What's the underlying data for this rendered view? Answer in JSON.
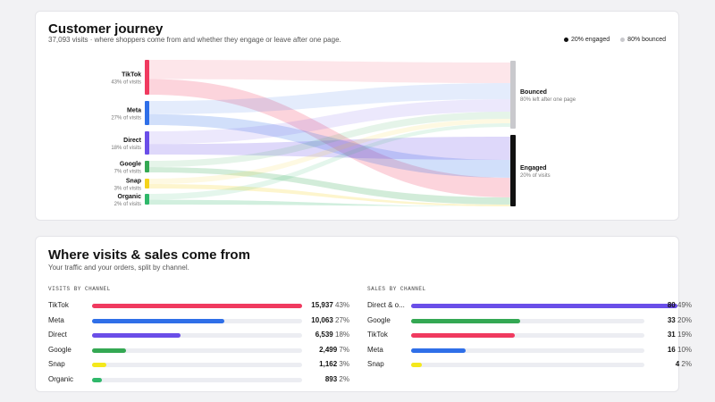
{
  "journey": {
    "title": "Customer journey",
    "subtitle": "37,093 visits · where shoppers come from and whether they engage or leave after one page.",
    "legend": [
      {
        "label": "20% engaged",
        "color": "#111111"
      },
      {
        "label": "80% bounced",
        "color": "#c9c9cd"
      }
    ],
    "sources": [
      {
        "name": "TikTok",
        "share": "43% of visits",
        "color": "#f03a5f"
      },
      {
        "name": "Meta",
        "share": "27% of visits",
        "color": "#2f6fe8"
      },
      {
        "name": "Direct",
        "share": "18% of visits",
        "color": "#6a4ee8"
      },
      {
        "name": "Google",
        "share": "7% of visits",
        "color": "#34a853"
      },
      {
        "name": "Snap",
        "share": "3% of visits",
        "color": "#f4d31c"
      },
      {
        "name": "Organic",
        "share": "2% of visits",
        "color": "#2fb86a"
      }
    ],
    "targets": [
      {
        "name": "Bounced",
        "note": "80% left after one page",
        "color": "#c9c9cd"
      },
      {
        "name": "Engaged",
        "note": "20% of visits",
        "color": "#111111"
      }
    ]
  },
  "channels": {
    "title": "Where visits & sales come from",
    "subtitle": "Your traffic and your orders, split by channel.",
    "visits_label": "VISITS BY CHANNEL",
    "sales_label": "SALES BY CHANNEL",
    "visits": [
      {
        "name": "TikTok",
        "value": "15,937",
        "pct": "43%",
        "fraction": 0.43,
        "color": "#f03a5f"
      },
      {
        "name": "Meta",
        "value": "10,063",
        "pct": "27%",
        "fraction": 0.27,
        "color": "#2f6fe8"
      },
      {
        "name": "Direct",
        "value": "6,539",
        "pct": "18%",
        "fraction": 0.18,
        "color": "#6a4ee8"
      },
      {
        "name": "Google",
        "value": "2,499",
        "pct": "7%",
        "fraction": 0.07,
        "color": "#34a853"
      },
      {
        "name": "Snap",
        "value": "1,162",
        "pct": "3%",
        "fraction": 0.03,
        "color": "#f4e81c"
      },
      {
        "name": "Organic",
        "value": "893",
        "pct": "2%",
        "fraction": 0.02,
        "color": "#2fb86a"
      }
    ],
    "sales": [
      {
        "name": "Direct & o...",
        "value": "80",
        "pct": "49%",
        "fraction": 0.49,
        "color": "#6a4ee8"
      },
      {
        "name": "Google",
        "value": "33",
        "pct": "20%",
        "fraction": 0.2,
        "color": "#34a853"
      },
      {
        "name": "TikTok",
        "value": "31",
        "pct": "19%",
        "fraction": 0.19,
        "color": "#f03a5f"
      },
      {
        "name": "Meta",
        "value": "16",
        "pct": "10%",
        "fraction": 0.1,
        "color": "#2f6fe8"
      },
      {
        "name": "Snap",
        "value": "4",
        "pct": "2%",
        "fraction": 0.02,
        "color": "#f4e81c"
      }
    ]
  }
}
